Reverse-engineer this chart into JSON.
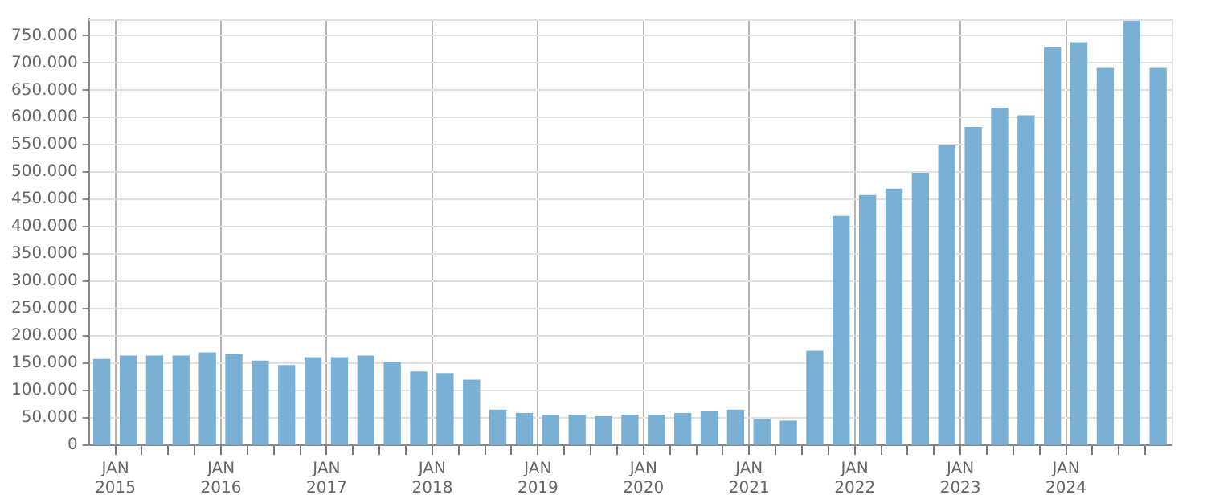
{
  "chart_data": {
    "type": "bar",
    "color": "#7ab0d3",
    "x": [
      "2014-11-15",
      "2015-02-15",
      "2015-05-15",
      "2015-08-15",
      "2015-11-15",
      "2016-02-15",
      "2016-05-15",
      "2016-08-15",
      "2016-11-15",
      "2017-02-15",
      "2017-05-15",
      "2017-08-15",
      "2017-11-15",
      "2018-02-15",
      "2018-05-15",
      "2018-08-15",
      "2018-11-15",
      "2019-02-15",
      "2019-05-15",
      "2019-08-15",
      "2019-11-15",
      "2020-02-15",
      "2020-05-15",
      "2020-08-15",
      "2020-11-15",
      "2021-02-15",
      "2021-05-15",
      "2021-08-15",
      "2021-11-15",
      "2022-02-15",
      "2022-05-15",
      "2022-08-15",
      "2022-11-15",
      "2023-02-15",
      "2023-05-15",
      "2023-08-15",
      "2023-11-15",
      "2024-02-15",
      "2024-05-15",
      "2024-08-15",
      "2024-11-15"
    ],
    "values": [
      157000,
      163000,
      163000,
      163000,
      169000,
      166000,
      154000,
      146000,
      160000,
      160000,
      163000,
      151000,
      134000,
      131000,
      119000,
      64000,
      58000,
      55000,
      55000,
      52000,
      55000,
      55000,
      58000,
      61000,
      64000,
      47000,
      44000,
      172000,
      419000,
      457000,
      469000,
      498000,
      548000,
      582000,
      617000,
      603000,
      728000,
      737000,
      690000,
      778000,
      690000
    ],
    "xlim": [
      "2014-10-01",
      "2025-01-01"
    ],
    "xticks": [
      {
        "value": "2015-01-01",
        "label": "JAN 2015"
      },
      {
        "value": "2015-04-01",
        "label": null
      },
      {
        "value": "2015-07-01",
        "label": null
      },
      {
        "value": "2015-10-01",
        "label": null
      },
      {
        "value": "2016-01-01",
        "label": "JAN 2016"
      },
      {
        "value": "2016-04-01",
        "label": null
      },
      {
        "value": "2016-07-01",
        "label": null
      },
      {
        "value": "2016-10-01",
        "label": null
      },
      {
        "value": "2017-01-01",
        "label": "JAN 2017"
      },
      {
        "value": "2017-04-01",
        "label": null
      },
      {
        "value": "2017-07-01",
        "label": null
      },
      {
        "value": "2017-10-01",
        "label": null
      },
      {
        "value": "2018-01-01",
        "label": "JAN 2018"
      },
      {
        "value": "2018-04-01",
        "label": null
      },
      {
        "value": "2018-07-01",
        "label": null
      },
      {
        "value": "2018-10-01",
        "label": null
      },
      {
        "value": "2019-01-01",
        "label": "JAN 2019"
      },
      {
        "value": "2019-04-01",
        "label": null
      },
      {
        "value": "2019-07-01",
        "label": null
      },
      {
        "value": "2019-10-01",
        "label": null
      },
      {
        "value": "2020-01-01",
        "label": "JAN 2020"
      },
      {
        "value": "2020-04-01",
        "label": null
      },
      {
        "value": "2020-07-01",
        "label": null
      },
      {
        "value": "2020-10-01",
        "label": null
      },
      {
        "value": "2021-01-01",
        "label": "JAN 2021"
      },
      {
        "value": "2021-04-01",
        "label": null
      },
      {
        "value": "2021-07-01",
        "label": null
      },
      {
        "value": "2021-10-01",
        "label": null
      },
      {
        "value": "2022-01-01",
        "label": "JAN 2022"
      },
      {
        "value": "2022-04-01",
        "label": null
      },
      {
        "value": "2022-07-01",
        "label": null
      },
      {
        "value": "2022-10-01",
        "label": null
      },
      {
        "value": "2023-01-01",
        "label": "JAN 2023"
      },
      {
        "value": "2023-04-01",
        "label": null
      },
      {
        "value": "2023-07-01",
        "label": null
      },
      {
        "value": "2023-10-01",
        "label": null
      },
      {
        "value": "2024-01-01",
        "label": "JAN 2024"
      },
      {
        "value": "2024-04-01",
        "label": null
      },
      {
        "value": "2024-07-01",
        "label": null
      },
      {
        "value": "2024-10-01",
        "label": null
      }
    ],
    "ylim": [
      0,
      780000
    ],
    "yticks": [
      {
        "value": 0,
        "label": "0"
      },
      {
        "value": 50000,
        "label": "50.000"
      },
      {
        "value": 100000,
        "label": "100.000"
      },
      {
        "value": 150000,
        "label": "150.000"
      },
      {
        "value": 200000,
        "label": "200.000"
      },
      {
        "value": 250000,
        "label": "250.000"
      },
      {
        "value": 300000,
        "label": "300.000"
      },
      {
        "value": 350000,
        "label": "350.000"
      },
      {
        "value": 400000,
        "label": "400.000"
      },
      {
        "value": 450000,
        "label": "450.000"
      },
      {
        "value": 500000,
        "label": "500.000"
      },
      {
        "value": 550000,
        "label": "550.000"
      },
      {
        "value": 600000,
        "label": "600.000"
      },
      {
        "value": 650000,
        "label": "650.000"
      },
      {
        "value": 700000,
        "label": "700.000"
      },
      {
        "value": 750000,
        "label": "750.000"
      }
    ],
    "grid": true,
    "legend": false
  }
}
